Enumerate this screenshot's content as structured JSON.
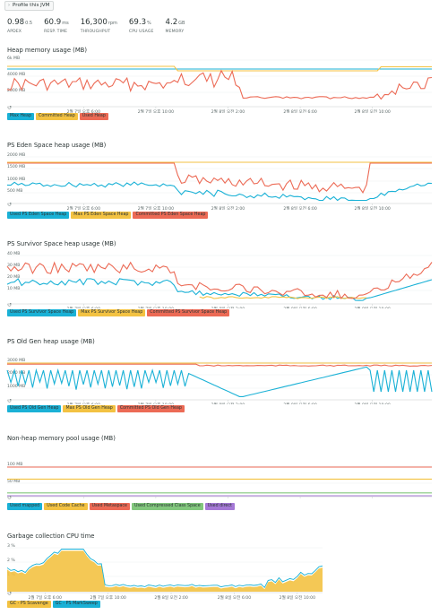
{
  "header": {
    "profile_label": "Profile this JVM"
  },
  "metrics": [
    {
      "value": "0.98",
      "sub": "0.5",
      "unit": "",
      "label": "APDEX"
    },
    {
      "value": "60.9",
      "unit": "ms",
      "label": "RESP. TIME"
    },
    {
      "value": "16,300",
      "unit": "rpm",
      "label": "THROUGHPUT"
    },
    {
      "value": "69.3",
      "unit": "%",
      "label": "CPU USAGE"
    },
    {
      "value": "4.2",
      "unit": "GB",
      "label": "MEMORY"
    }
  ],
  "x_ticks": [
    "2월 7일 오후 6:00",
    "2월 7일 오후 10:00",
    "2월 8일 오전 2:00",
    "2월 8일 오전 6:00",
    "2월 8일 오전 10:00"
  ],
  "colors": {
    "blue": "#1ab1d6",
    "yellow": "#f3c242",
    "red": "#ec6a55",
    "green": "#82c77d",
    "purple": "#a579d6"
  },
  "charts": [
    {
      "title": "Heap memory usage (MB)",
      "y_ticks": [
        "6k MB",
        "4000 MB",
        "2000 MB"
      ],
      "legend": [
        "Max Heap",
        "Committed Heap",
        "Used Heap"
      ],
      "legend_colors": [
        "blue",
        "yellow",
        "red"
      ]
    },
    {
      "title": "PS Eden Space heap usage (MB)",
      "y_ticks": [
        "2000 MB",
        "1500 MB",
        "1000 MB",
        "500 MB"
      ],
      "legend": [
        "Used PS Eden Space Heap",
        "Max PS Eden Space Heap",
        "Committed PS Eden Space Heap"
      ],
      "legend_colors": [
        "blue",
        "yellow",
        "red"
      ]
    },
    {
      "title": "PS Survivor Space heap usage (MB)",
      "y_ticks": [
        "40 MB",
        "30 MB",
        "20 MB",
        "10 MB"
      ],
      "legend": [
        "Used PS Survivor Space Heap",
        "Max PS Survivor Space Heap",
        "Committed PS Survivor Space Heap"
      ],
      "legend_colors": [
        "blue",
        "yellow",
        "red"
      ]
    },
    {
      "title": "PS Old Gen heap usage (MB)",
      "y_ticks": [
        "3000 MB",
        "2000 MB",
        "1000 MB"
      ],
      "legend": [
        "Used PS Old Gen Heap",
        "Max PS Old Gen Heap",
        "Committed PS Old Gen Heap"
      ],
      "legend_colors": [
        "blue",
        "yellow",
        "red"
      ]
    },
    {
      "title": "Non-heap memory pool usage (MB)",
      "y_ticks": [
        "100 MB",
        "50 MB"
      ],
      "legend": [
        "Used mapped",
        "Used Code Cache",
        "Used Metaspace",
        "Used Compressed Class Space",
        "Used direct"
      ],
      "legend_colors": [
        "blue",
        "yellow",
        "red",
        "green",
        "purple"
      ]
    },
    {
      "title": "Garbage collection CPU time",
      "y_ticks": [
        "3 %",
        "2 %",
        "1 %"
      ],
      "legend": [
        "GC - PS Scavenge",
        "GC - PS MarkSweep"
      ],
      "legend_colors": [
        "yellow",
        "blue"
      ]
    }
  ]
}
